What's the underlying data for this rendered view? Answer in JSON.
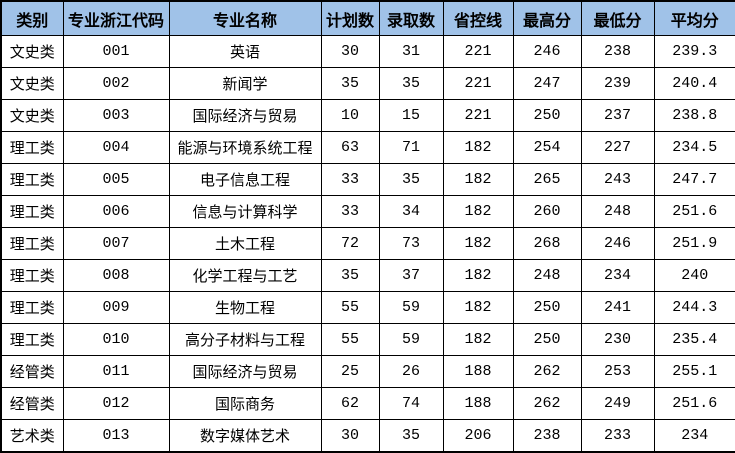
{
  "colors": {
    "header_bg": "#A0C2E8",
    "border": "#000000",
    "row_bg": "#FFFFFF",
    "text": "#000000"
  },
  "chart_data": {
    "type": "table",
    "title": "",
    "columns": [
      "类别",
      "专业浙江代码",
      "专业名称",
      "计划数",
      "录取数",
      "省控线",
      "最高分",
      "最低分",
      "平均分"
    ],
    "rows": [
      [
        "文史类",
        "001",
        "英语",
        "30",
        "31",
        "221",
        "246",
        "238",
        "239.3"
      ],
      [
        "文史类",
        "002",
        "新闻学",
        "35",
        "35",
        "221",
        "247",
        "239",
        "240.4"
      ],
      [
        "文史类",
        "003",
        "国际经济与贸易",
        "10",
        "15",
        "221",
        "250",
        "237",
        "238.8"
      ],
      [
        "理工类",
        "004",
        "能源与环境系统工程",
        "63",
        "71",
        "182",
        "254",
        "227",
        "234.5"
      ],
      [
        "理工类",
        "005",
        "电子信息工程",
        "33",
        "35",
        "182",
        "265",
        "243",
        "247.7"
      ],
      [
        "理工类",
        "006",
        "信息与计算科学",
        "33",
        "34",
        "182",
        "260",
        "248",
        "251.6"
      ],
      [
        "理工类",
        "007",
        "土木工程",
        "72",
        "73",
        "182",
        "268",
        "246",
        "251.9"
      ],
      [
        "理工类",
        "008",
        "化学工程与工艺",
        "35",
        "37",
        "182",
        "248",
        "234",
        "240"
      ],
      [
        "理工类",
        "009",
        "生物工程",
        "55",
        "59",
        "182",
        "250",
        "241",
        "244.3"
      ],
      [
        "理工类",
        "010",
        "高分子材料与工程",
        "55",
        "59",
        "182",
        "250",
        "230",
        "235.4"
      ],
      [
        "经管类",
        "011",
        "国际经济与贸易",
        "25",
        "26",
        "188",
        "262",
        "253",
        "255.1"
      ],
      [
        "经管类",
        "012",
        "国际商务",
        "62",
        "74",
        "188",
        "262",
        "249",
        "251.6"
      ],
      [
        "艺术类",
        "013",
        "数字媒体艺术",
        "30",
        "35",
        "206",
        "238",
        "233",
        "234"
      ]
    ],
    "layout": {
      "grid": true,
      "header_row": true,
      "cell_text_align": "center"
    }
  }
}
